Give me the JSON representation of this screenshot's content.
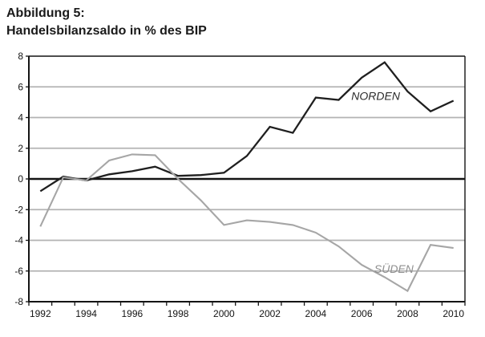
{
  "title": {
    "line1": "Abbildung 5:",
    "line2": "Handelsbilanzsaldo in % des BIP"
  },
  "chart_data": {
    "type": "line",
    "title": "Abbildung 5: Handelsbilanzsaldo in % des BIP",
    "xlabel": "",
    "ylabel": "",
    "x": [
      1992,
      1993,
      1994,
      1995,
      1996,
      1997,
      1998,
      1999,
      2000,
      2001,
      2002,
      2003,
      2004,
      2005,
      2006,
      2007,
      2008,
      2009,
      2010
    ],
    "x_axis_labeled_years": [
      1992,
      1994,
      1996,
      1998,
      2000,
      2002,
      2004,
      2006,
      2008,
      2010
    ],
    "ylim": [
      -8,
      8
    ],
    "y_ticks": [
      8,
      6,
      4,
      2,
      0,
      -2,
      -4,
      -6,
      -8
    ],
    "grid": "horizontal-light-gray",
    "zero_line": "black-bold",
    "legend_position": "inline-labels",
    "series": [
      {
        "name": "NORDEN",
        "color": "#1f1f1f",
        "label_color": "#2b2b2b",
        "values": [
          -0.8,
          0.15,
          -0.1,
          0.3,
          0.5,
          0.8,
          0.2,
          0.25,
          0.4,
          1.5,
          3.4,
          3.0,
          5.3,
          5.15,
          6.6,
          7.6,
          5.7,
          4.4,
          5.1
        ]
      },
      {
        "name": "SÜDEN",
        "color": "#a6a6a6",
        "label_color": "#8f8f8f",
        "values": [
          -3.1,
          0.1,
          -0.1,
          1.2,
          1.6,
          1.55,
          0.0,
          -1.4,
          -3.0,
          -2.7,
          -2.8,
          -3.0,
          -3.5,
          -4.4,
          -5.6,
          -6.4,
          -7.3,
          -4.3,
          -4.5
        ]
      }
    ],
    "annotations": [
      {
        "text": "NORDEN",
        "series": 0,
        "xi": 13.55,
        "value": 5.4
      },
      {
        "text": "SÜDEN",
        "series": 1,
        "xi": 14.55,
        "value": -5.85
      }
    ],
    "axis_color": "#141414",
    "gridline_color": "#b3b3b3"
  }
}
